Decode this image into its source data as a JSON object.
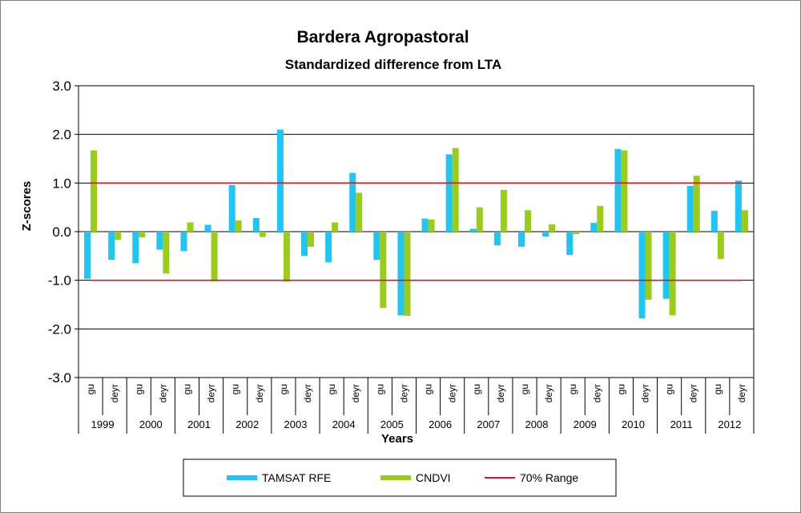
{
  "colors": {
    "tamsat": "#1fc6f3",
    "cndvi": "#9acd1a",
    "range": "#e0141e",
    "grid": "#000000"
  },
  "chart_data": {
    "type": "bar",
    "title": "Bardera Agropastoral",
    "subtitle": "Standardized difference from LTA",
    "xlabel": "Years",
    "ylabel": "Z-scores",
    "ylim": [
      -3.0,
      3.0
    ],
    "yticks": [
      "3.0",
      "2.0",
      "1.0",
      "0.0",
      "-1.0",
      "-2.0",
      "-3.0"
    ],
    "grid": true,
    "years": [
      "1999",
      "2000",
      "2001",
      "2002",
      "2003",
      "2004",
      "2005",
      "2006",
      "2007",
      "2008",
      "2009",
      "2010",
      "2011",
      "2012"
    ],
    "seasons": [
      "gu",
      "deyr"
    ],
    "series": [
      {
        "name": "TAMSAT RFE",
        "values": [
          -0.97,
          -0.58,
          -0.65,
          -0.37,
          -0.4,
          0.14,
          0.96,
          0.28,
          2.1,
          -0.5,
          -0.63,
          1.21,
          -0.58,
          -1.72,
          0.27,
          1.59,
          0.06,
          -0.28,
          -0.31,
          -0.1,
          -0.48,
          0.18,
          1.7,
          -1.78,
          -1.38,
          0.94,
          0.43,
          1.05
        ]
      },
      {
        "name": "CNDVI",
        "values": [
          1.67,
          -0.17,
          -0.12,
          -0.86,
          0.19,
          -1.02,
          0.23,
          -0.11,
          -1.03,
          -0.31,
          0.19,
          0.8,
          -1.57,
          -1.73,
          0.25,
          1.72,
          0.5,
          0.86,
          0.44,
          0.15,
          -0.05,
          0.53,
          1.67,
          -1.4,
          -1.72,
          1.15,
          -0.56,
          0.44
        ]
      }
    ],
    "reference_lines": [
      {
        "name": "70% Range",
        "values": [
          1.0,
          -1.0
        ]
      }
    ],
    "legend": {
      "position": "bottom",
      "entries": [
        "TAMSAT RFE",
        "CNDVI",
        "70% Range"
      ]
    }
  }
}
